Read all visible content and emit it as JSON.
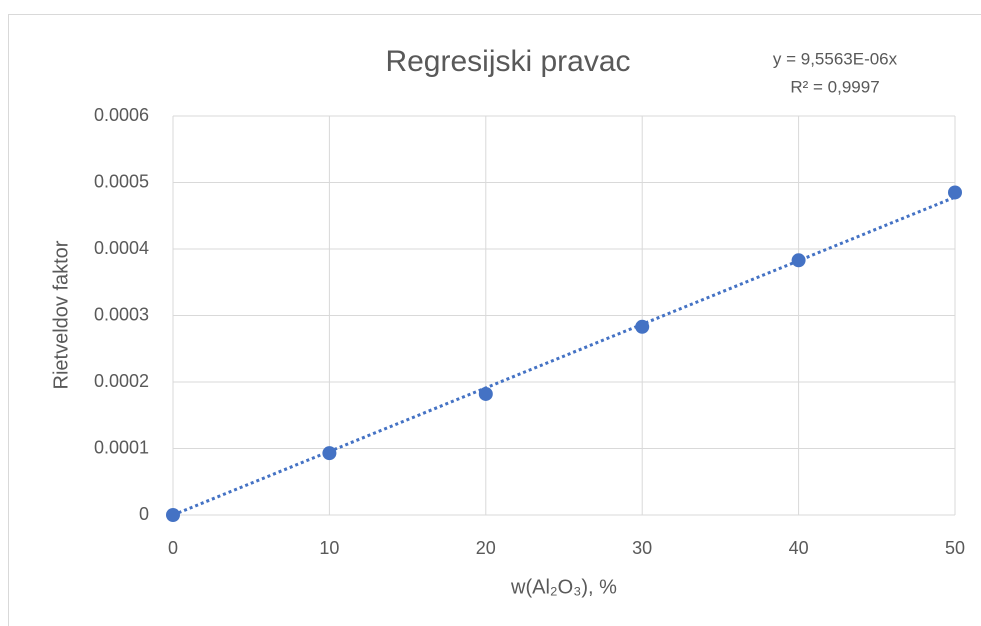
{
  "chart_data": {
    "type": "scatter",
    "title": "Regresijski pravac",
    "annotations": [
      "y = 9,5563E-06x",
      "R² = 0,9997"
    ],
    "x_label": "w(Al₂O₃), %",
    "y_label": "Rietveldov faktor",
    "x": [
      0,
      10,
      20,
      30,
      40,
      50
    ],
    "series": [
      {
        "color": "#4472c4",
        "values": [
          0,
          9.3e-05,
          0.000182,
          0.000283,
          0.000383,
          0.000485
        ]
      }
    ],
    "trendline": {
      "x": [
        0,
        50
      ],
      "values": [
        0,
        0.000478
      ],
      "color": "#4472c4",
      "style": "dotted"
    },
    "xlim": [
      0,
      50
    ],
    "xticks": [
      0,
      10,
      20,
      30,
      40,
      50
    ],
    "ylim": [
      0,
      0.0006
    ],
    "yticks": [
      0,
      0.0001,
      0.0002,
      0.0003,
      0.0004,
      0.0005,
      0.0006
    ],
    "grid": true
  }
}
